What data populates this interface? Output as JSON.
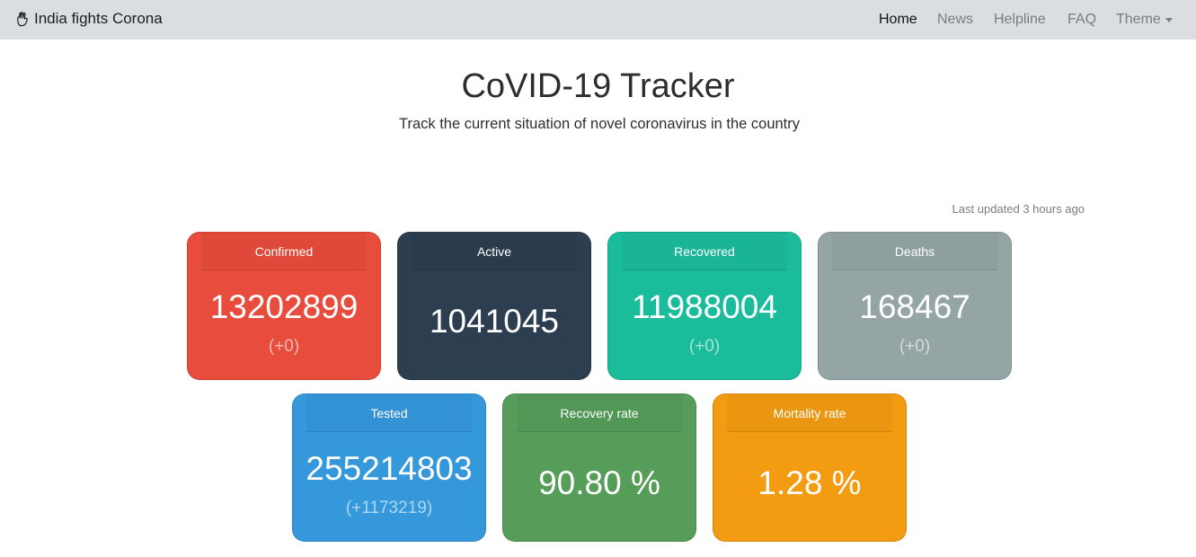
{
  "nav": {
    "brand": "India fights Corona",
    "links": [
      "Home",
      "News",
      "Helpline",
      "FAQ",
      "Theme"
    ]
  },
  "header": {
    "title": "CoVID-19 Tracker",
    "subtitle": "Track the current situation of novel coronavirus in the country"
  },
  "last_updated": "Last updated 3 hours ago",
  "cards": {
    "confirmed": {
      "label": "Confirmed",
      "value": "13202899",
      "delta": "(+0)",
      "color": "#e84c3d"
    },
    "active": {
      "label": "Active",
      "value": "1041045",
      "color": "#2c3e50"
    },
    "recovered": {
      "label": "Recovered",
      "value": "11988004",
      "delta": "(+0)",
      "color": "#1abc9c"
    },
    "deaths": {
      "label": "Deaths",
      "value": "168467",
      "delta": "(+0)",
      "color": "#95a5a6"
    },
    "tested": {
      "label": "Tested",
      "value": "255214803",
      "delta": "(+1173219)",
      "color": "#3498db"
    },
    "recovery_rate": {
      "label": "Recovery rate",
      "value": "90.80 %",
      "color": "#569d59"
    },
    "mortality_rate": {
      "label": "Mortality rate",
      "value": "1.28 %",
      "color": "#f39c12"
    }
  }
}
